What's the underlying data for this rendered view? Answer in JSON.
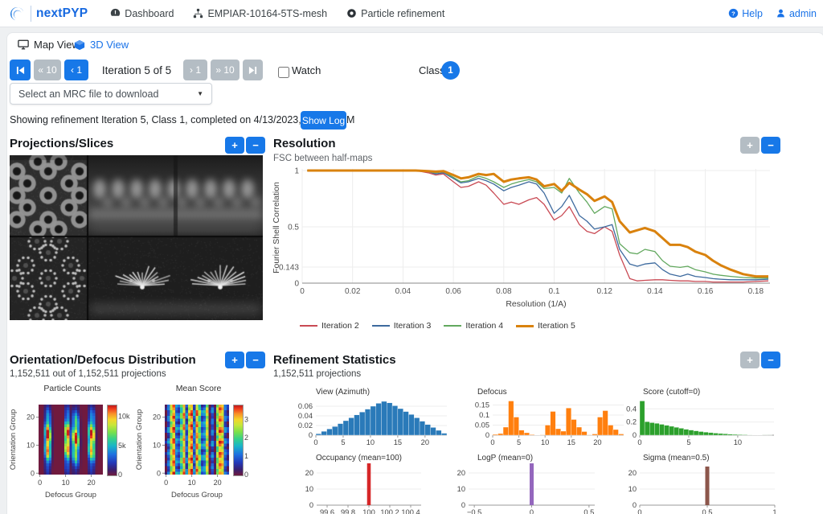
{
  "navbar": {
    "brand": "nextPYP",
    "items": [
      {
        "label": "Dashboard"
      },
      {
        "label": "EMPIAR-10164-5TS-mesh"
      },
      {
        "label": "Particle refinement"
      }
    ],
    "right": [
      {
        "label": "Help"
      },
      {
        "label": "admin"
      }
    ]
  },
  "tabs": {
    "map_view": "Map View",
    "view_3d": "3D View"
  },
  "controls": {
    "btn_back10": "« 10",
    "btn_back1": "‹ 1",
    "iteration_label": "Iteration 5 of 5",
    "btn_fwd1": "› 1",
    "btn_fwd10": "» 10",
    "watch_label": "Watch",
    "class_label": "Class:",
    "class_value": "1",
    "zoom_in": "+",
    "zoom_out": "−"
  },
  "mrc_select": {
    "value": "Select an MRC file to download"
  },
  "status": {
    "text": "Showing refinement Iteration 5, Class 1, completed on 4/13/2023, 3:00:36 AM",
    "show_log": "Show Log"
  },
  "panels": {
    "projections": {
      "title": "Projections/Slices"
    },
    "resolution": {
      "title": "Resolution",
      "subtitle": "FSC between half-maps"
    },
    "orientation": {
      "title": "Orientation/Defocus Distribution",
      "subtitle": "1,152,511 out of 1,152,511 projections"
    },
    "refinement": {
      "title": "Refinement Statistics",
      "subtitle": "1,152,511 projections"
    }
  },
  "chart_data": [
    {
      "id": "fsc",
      "type": "line",
      "title": "FSC between half-maps",
      "xlabel": "Resolution (1/A)",
      "ylabel": "Fourier Shell Correlation",
      "xlim": [
        0,
        0.19
      ],
      "ylim": [
        0,
        1.05
      ],
      "xticks": [
        0,
        0.02,
        0.04,
        0.06,
        0.08,
        0.1,
        0.12,
        0.14,
        0.16,
        0.18
      ],
      "yticks": [
        0,
        0.143,
        0.5,
        1
      ],
      "legend_position": "bottom",
      "x": [
        0.002,
        0.01,
        0.02,
        0.03,
        0.04,
        0.045,
        0.05,
        0.053,
        0.056,
        0.06,
        0.063,
        0.066,
        0.07,
        0.073,
        0.076,
        0.08,
        0.083,
        0.086,
        0.09,
        0.093,
        0.096,
        0.1,
        0.103,
        0.106,
        0.11,
        0.113,
        0.116,
        0.12,
        0.123,
        0.126,
        0.13,
        0.133,
        0.136,
        0.14,
        0.143,
        0.146,
        0.15,
        0.153,
        0.156,
        0.16,
        0.163,
        0.166,
        0.17,
        0.175,
        0.18,
        0.185
      ],
      "series": [
        {
          "name": "Iteration 2",
          "color": "#c94a54",
          "width": 1.3,
          "values": [
            1,
            1,
            1,
            1,
            1,
            1,
            0.98,
            0.96,
            0.97,
            0.9,
            0.85,
            0.86,
            0.9,
            0.87,
            0.8,
            0.7,
            0.72,
            0.7,
            0.74,
            0.76,
            0.7,
            0.56,
            0.6,
            0.68,
            0.52,
            0.46,
            0.44,
            0.5,
            0.46,
            0.25,
            0.04,
            0.02,
            0.025,
            0.03,
            0.03,
            0.025,
            0.02,
            0.02,
            0.015,
            0.015,
            0.01,
            0.01,
            0.01,
            0.01,
            0.015,
            0.02
          ]
        },
        {
          "name": "Iteration 3",
          "color": "#3d6a9e",
          "width": 1.3,
          "values": [
            1,
            1,
            1,
            1,
            1,
            1,
            0.99,
            0.97,
            0.98,
            0.93,
            0.89,
            0.9,
            0.93,
            0.91,
            0.88,
            0.82,
            0.85,
            0.87,
            0.9,
            0.88,
            0.8,
            0.62,
            0.68,
            0.78,
            0.6,
            0.55,
            0.48,
            0.5,
            0.52,
            0.3,
            0.17,
            0.15,
            0.17,
            0.18,
            0.12,
            0.08,
            0.06,
            0.08,
            0.06,
            0.05,
            0.04,
            0.035,
            0.03,
            0.03,
            0.03,
            0.035
          ]
        },
        {
          "name": "Iteration 4",
          "color": "#62a85e",
          "width": 1.3,
          "values": [
            1,
            1,
            1,
            1,
            1,
            1,
            0.99,
            0.98,
            0.99,
            0.94,
            0.9,
            0.91,
            0.95,
            0.93,
            0.9,
            0.85,
            0.88,
            0.9,
            0.92,
            0.9,
            0.84,
            0.85,
            0.8,
            0.93,
            0.8,
            0.72,
            0.62,
            0.68,
            0.66,
            0.35,
            0.27,
            0.26,
            0.3,
            0.28,
            0.2,
            0.15,
            0.14,
            0.15,
            0.12,
            0.1,
            0.08,
            0.07,
            0.06,
            0.05,
            0.045,
            0.045
          ]
        },
        {
          "name": "Iteration 5",
          "color": "#d9820e",
          "width": 3,
          "values": [
            1,
            1,
            1,
            1,
            1,
            1,
            0.995,
            0.99,
            0.995,
            0.96,
            0.93,
            0.94,
            0.97,
            0.96,
            0.97,
            0.9,
            0.92,
            0.93,
            0.94,
            0.92,
            0.86,
            0.88,
            0.82,
            0.89,
            0.83,
            0.79,
            0.73,
            0.77,
            0.72,
            0.55,
            0.45,
            0.47,
            0.49,
            0.46,
            0.4,
            0.34,
            0.34,
            0.32,
            0.28,
            0.25,
            0.2,
            0.16,
            0.12,
            0.08,
            0.06,
            0.06
          ]
        }
      ]
    },
    {
      "id": "particle_counts",
      "type": "heatmap",
      "title": "Particle Counts",
      "xlabel": "Defocus Group",
      "ylabel": "Orientation Group",
      "xticks": [
        0,
        10,
        20
      ],
      "yticks": [
        0,
        10,
        20
      ],
      "grid_size": 25,
      "col_amplitudes": [
        0,
        0,
        5000,
        12000,
        7000,
        900,
        0,
        0,
        0,
        0,
        8000,
        11000,
        2600,
        7200,
        11500,
        6200,
        600,
        0,
        0,
        5600,
        11200,
        8200,
        700,
        0,
        0
      ],
      "row_center": 12,
      "row_sigma": 6,
      "vmax": 12000,
      "colorbar_ticks": [
        {
          "label": "0",
          "value": 0
        },
        {
          "label": "5k",
          "value": 5000
        },
        {
          "label": "10k",
          "value": 10000
        }
      ]
    },
    {
      "id": "mean_score",
      "type": "heatmap",
      "title": "Mean Score",
      "xlabel": "Defocus Group",
      "ylabel": "Orientation Group",
      "xticks": [
        0,
        10,
        20
      ],
      "yticks": [
        0,
        10,
        20
      ],
      "grid_size": 25,
      "col_scores": [
        0.12,
        1.0,
        2.6,
        3.3,
        1.2,
        0.9,
        2.0,
        3.1,
        1.0,
        2.9,
        3.4,
        1.1,
        3.2,
        2.2,
        1.0,
        1.3,
        2.7,
        0.12,
        1.0,
        0.12,
        2.4,
        3.3,
        3.0,
        1.0,
        0.5
      ],
      "jitter": 0.45,
      "vmax": 3.8,
      "colorbar_ticks": [
        {
          "label": "0",
          "value": 0
        },
        {
          "label": "1",
          "value": 1
        },
        {
          "label": "2",
          "value": 2
        },
        {
          "label": "3",
          "value": 3
        }
      ]
    },
    {
      "id": "view_azimuth",
      "type": "bar",
      "title": "View (Azimuth)",
      "color": "#2a7ab9",
      "xlim": [
        0,
        24
      ],
      "ylim": [
        0,
        0.075
      ],
      "xticks": [
        0,
        5,
        10,
        15,
        20
      ],
      "yticks": [
        0,
        0.02,
        0.04,
        0.06
      ],
      "values": [
        0.003,
        0.008,
        0.013,
        0.018,
        0.024,
        0.03,
        0.036,
        0.042,
        0.048,
        0.054,
        0.06,
        0.066,
        0.07,
        0.067,
        0.061,
        0.055,
        0.049,
        0.043,
        0.036,
        0.029,
        0.022,
        0.016,
        0.01,
        0.004
      ]
    },
    {
      "id": "defocus",
      "type": "bar",
      "title": "Defocus",
      "color": "#ff7f0e",
      "xlim": [
        0,
        25
      ],
      "ylim": [
        0,
        0.18
      ],
      "xticks": [
        0,
        5,
        10,
        15,
        20
      ],
      "yticks": [
        0,
        0.05,
        0.1,
        0.15
      ],
      "values": [
        0.004,
        0.008,
        0.04,
        0.17,
        0.09,
        0.025,
        0.012,
        0.003,
        0.001,
        0.002,
        0.05,
        0.118,
        0.032,
        0.02,
        0.135,
        0.078,
        0.04,
        0.018,
        0.002,
        0.006,
        0.09,
        0.122,
        0.05,
        0.028,
        0.006
      ]
    },
    {
      "id": "score",
      "type": "bar",
      "title": "Score (cutoff=0)",
      "color": "#2ca02c",
      "xlim": [
        0,
        13.7
      ],
      "ylim": [
        0,
        0.55
      ],
      "bin_width": 0.5,
      "xticks": [
        0,
        5,
        10
      ],
      "yticks": [
        0,
        0.2,
        0.4
      ],
      "values": [
        0.52,
        0.205,
        0.19,
        0.18,
        0.165,
        0.15,
        0.135,
        0.12,
        0.105,
        0.09,
        0.078,
        0.066,
        0.055,
        0.046,
        0.038,
        0.031,
        0.025,
        0.02,
        0.016,
        0.012,
        0.009,
        0.007,
        0.005,
        0.004,
        0.003,
        0.002,
        0.0015
      ]
    },
    {
      "id": "occupancy",
      "type": "bar",
      "title": "Occupancy (mean=100)",
      "color": "#d62728",
      "xlim": [
        99.5,
        100.5
      ],
      "ylim": [
        0,
        25
      ],
      "xticks": [
        99.6,
        99.8,
        100,
        100.2,
        100.4
      ],
      "yticks": [
        0,
        10,
        20
      ],
      "bar": {
        "x": 100,
        "value": 26,
        "width": 0.035
      }
    },
    {
      "id": "logp",
      "type": "bar",
      "title": "LogP (mean=0)",
      "color": "#9467bd",
      "xlim": [
        -0.55,
        0.55
      ],
      "ylim": [
        0,
        25
      ],
      "xticks": [
        -0.5,
        0,
        0.5
      ],
      "yticks": [
        0,
        10,
        20
      ],
      "bar": {
        "x": 0,
        "value": 26,
        "width": 0.035
      }
    },
    {
      "id": "sigma",
      "type": "bar",
      "title": "Sigma (mean=0.5)",
      "color": "#8c564b",
      "xlim": [
        0,
        1
      ],
      "ylim": [
        0,
        25
      ],
      "xticks": [
        0,
        0.5,
        1
      ],
      "yticks": [
        0,
        10,
        20
      ],
      "bar": {
        "x": 0.5,
        "value": 24,
        "width": 0.03
      }
    }
  ]
}
